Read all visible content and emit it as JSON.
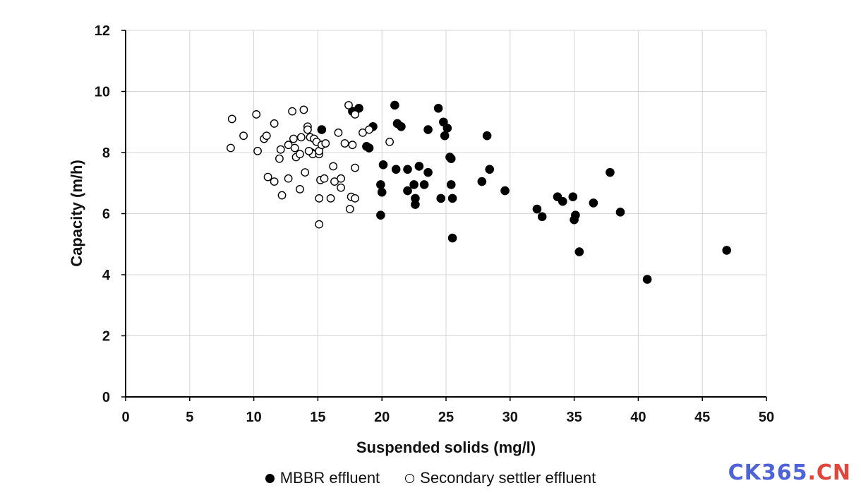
{
  "chart_data": {
    "type": "scatter",
    "xlabel": "Suspended solids (mg/l)",
    "ylabel": "Capacity (m/h)",
    "xlim": [
      0,
      50
    ],
    "ylim": [
      0,
      12
    ],
    "xticks": [
      0,
      5,
      10,
      15,
      20,
      25,
      30,
      35,
      40,
      45,
      50
    ],
    "yticks": [
      0,
      2,
      4,
      6,
      8,
      10,
      12
    ],
    "grid": true,
    "legend_position": "bottom",
    "series": [
      {
        "name": "MBBR effluent",
        "marker": "filled-circle",
        "color": "#000000",
        "points": [
          [
            15.3,
            8.75
          ],
          [
            17.7,
            9.35
          ],
          [
            18.2,
            9.45
          ],
          [
            18.8,
            8.2
          ],
          [
            19.0,
            8.15
          ],
          [
            19.3,
            8.85
          ],
          [
            19.9,
            6.95
          ],
          [
            20.0,
            6.7
          ],
          [
            19.9,
            5.95
          ],
          [
            20.1,
            7.6
          ],
          [
            21.0,
            9.55
          ],
          [
            21.2,
            8.95
          ],
          [
            21.5,
            8.85
          ],
          [
            21.1,
            7.45
          ],
          [
            22.0,
            7.45
          ],
          [
            22.0,
            6.75
          ],
          [
            22.5,
            6.95
          ],
          [
            22.6,
            6.3
          ],
          [
            22.6,
            6.5
          ],
          [
            22.9,
            7.55
          ],
          [
            23.3,
            6.95
          ],
          [
            23.6,
            7.35
          ],
          [
            23.6,
            8.75
          ],
          [
            24.4,
            9.45
          ],
          [
            24.8,
            9.0
          ],
          [
            25.1,
            8.8
          ],
          [
            24.9,
            8.55
          ],
          [
            24.6,
            6.5
          ],
          [
            25.3,
            7.85
          ],
          [
            25.4,
            7.8
          ],
          [
            25.4,
            6.95
          ],
          [
            25.5,
            6.5
          ],
          [
            25.5,
            5.2
          ],
          [
            27.8,
            7.05
          ],
          [
            28.2,
            8.55
          ],
          [
            28.4,
            7.45
          ],
          [
            29.6,
            6.75
          ],
          [
            32.1,
            6.15
          ],
          [
            32.5,
            5.9
          ],
          [
            33.7,
            6.55
          ],
          [
            34.1,
            6.4
          ],
          [
            34.9,
            6.55
          ],
          [
            35.0,
            5.8
          ],
          [
            35.1,
            5.95
          ],
          [
            35.4,
            4.75
          ],
          [
            36.5,
            6.35
          ],
          [
            37.8,
            7.35
          ],
          [
            38.6,
            6.05
          ],
          [
            40.7,
            3.85
          ],
          [
            46.9,
            4.8
          ]
        ]
      },
      {
        "name": "Secondary settler effluent",
        "marker": "open-circle",
        "color": "#000000",
        "points": [
          [
            8.2,
            8.15
          ],
          [
            8.3,
            9.1
          ],
          [
            9.2,
            8.55
          ],
          [
            10.2,
            9.25
          ],
          [
            10.3,
            8.05
          ],
          [
            10.8,
            8.45
          ],
          [
            11.0,
            8.55
          ],
          [
            11.1,
            7.2
          ],
          [
            11.6,
            8.95
          ],
          [
            11.6,
            7.05
          ],
          [
            12.0,
            7.8
          ],
          [
            12.1,
            8.1
          ],
          [
            12.2,
            6.6
          ],
          [
            12.7,
            8.25
          ],
          [
            12.7,
            7.15
          ],
          [
            13.0,
            9.35
          ],
          [
            13.1,
            8.45
          ],
          [
            13.2,
            8.15
          ],
          [
            13.3,
            7.85
          ],
          [
            13.6,
            6.8
          ],
          [
            13.6,
            7.95
          ],
          [
            13.7,
            8.5
          ],
          [
            13.9,
            9.4
          ],
          [
            14.0,
            7.35
          ],
          [
            14.2,
            8.85
          ],
          [
            14.2,
            8.75
          ],
          [
            14.4,
            8.5
          ],
          [
            14.5,
            8.0
          ],
          [
            14.6,
            7.95
          ],
          [
            14.3,
            8.05
          ],
          [
            14.7,
            8.45
          ],
          [
            14.9,
            8.35
          ],
          [
            15.1,
            7.95
          ],
          [
            15.1,
            8.05
          ],
          [
            15.3,
            8.25
          ],
          [
            15.6,
            8.3
          ],
          [
            15.1,
            6.5
          ],
          [
            15.2,
            7.1
          ],
          [
            15.5,
            7.15
          ],
          [
            15.1,
            5.65
          ],
          [
            16.0,
            6.5
          ],
          [
            16.2,
            7.55
          ],
          [
            16.3,
            7.05
          ],
          [
            16.6,
            8.65
          ],
          [
            16.8,
            7.15
          ],
          [
            16.8,
            6.85
          ],
          [
            17.1,
            8.3
          ],
          [
            17.4,
            9.55
          ],
          [
            17.5,
            6.15
          ],
          [
            17.6,
            6.55
          ],
          [
            17.7,
            8.25
          ],
          [
            17.9,
            6.5
          ],
          [
            17.9,
            7.5
          ],
          [
            17.9,
            9.25
          ],
          [
            18.5,
            8.65
          ],
          [
            19.0,
            8.75
          ],
          [
            20.6,
            8.35
          ]
        ]
      }
    ]
  },
  "legend": {
    "items": [
      {
        "label": "MBBR effluent",
        "marker": "filled-circle"
      },
      {
        "label": "Secondary settler effluent",
        "marker": "open-circle"
      }
    ]
  },
  "watermark": {
    "part1": "CK365",
    "part2": ".",
    "part3": "CN"
  }
}
